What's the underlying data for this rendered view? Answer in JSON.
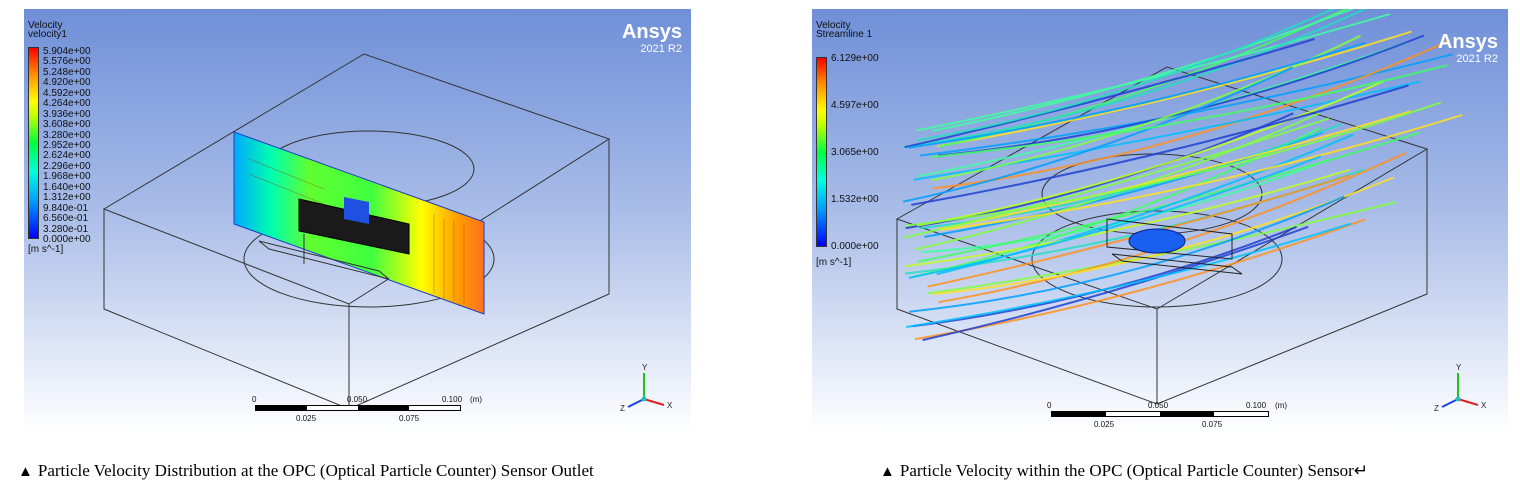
{
  "left": {
    "legend_title": "Velocity",
    "legend_subtitle": "velocity1",
    "legend_ticks": [
      "5.904e+00",
      "5.576e+00",
      "5.248e+00",
      "4.920e+00",
      "4.592e+00",
      "4.264e+00",
      "3.936e+00",
      "3.608e+00",
      "3.280e+00",
      "2.952e+00",
      "2.624e+00",
      "2.296e+00",
      "1.968e+00",
      "1.640e+00",
      "1.312e+00",
      "9.840e-01",
      "6.560e-01",
      "3.280e-01",
      "0.000e+00"
    ],
    "units": "[m s^-1]",
    "brand": "Ansys",
    "version": "2021 R2",
    "scale_top": [
      "0",
      "0.050",
      "0.100",
      "(m)"
    ],
    "scale_bottom": [
      "0.025",
      "0.075"
    ],
    "caption": "Particle Velocity Distribution at the OPC (Optical Particle Counter) Sensor Outlet"
  },
  "right": {
    "legend_title": "Velocity",
    "legend_subtitle": "Streamline 1",
    "legend_ticks": [
      "6.129e+00",
      "4.597e+00",
      "3.065e+00",
      "1.532e+00",
      "0.000e+00"
    ],
    "units": "[m s^-1]",
    "brand": "Ansys",
    "version": "2021 R2",
    "scale_top": [
      "0",
      "0.050",
      "0.100",
      "(m)"
    ],
    "scale_bottom": [
      "0.025",
      "0.075"
    ],
    "caption": "Particle Velocity within the OPC (Optical Particle Counter) Sensor↵"
  },
  "axes_labels": [
    "Y",
    "X",
    "Z"
  ],
  "caption_marker": "▲",
  "colors": {
    "bg_top": "#6f8fd8",
    "bg_bottom": "#ffffff",
    "brand": "#ffffff"
  }
}
